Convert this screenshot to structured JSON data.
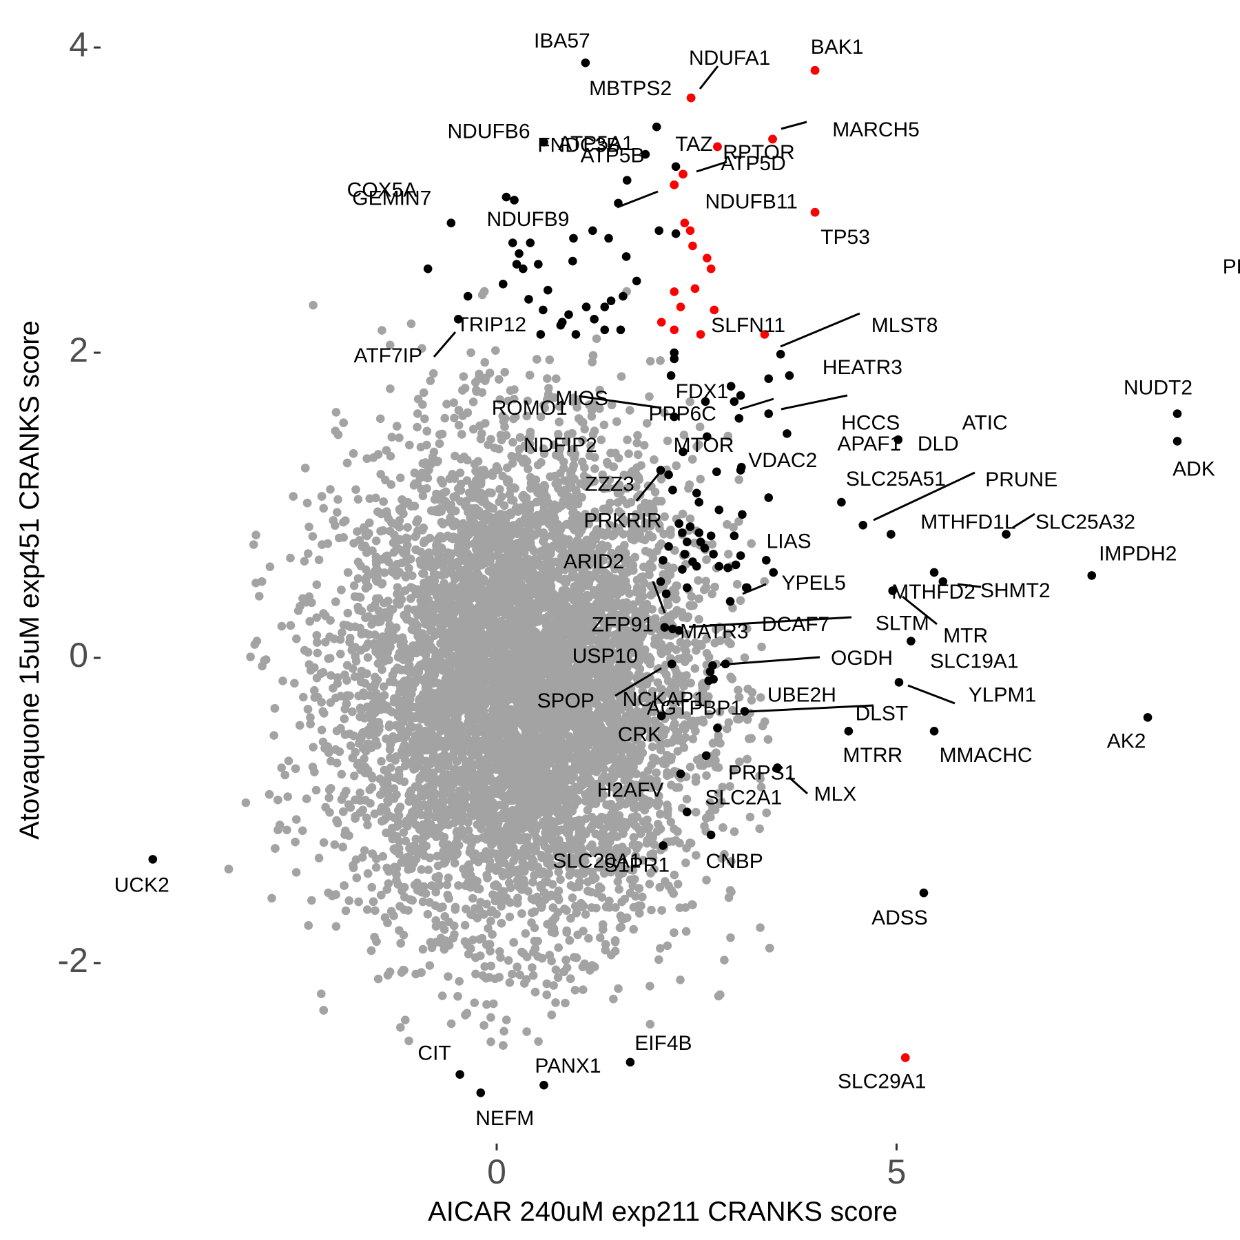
{
  "chart_data": {
    "type": "scatter",
    "title": "",
    "xlabel": "AICAR 240uM exp211 CRANKS score",
    "ylabel": "Atovaquone 15uM exp451 CRANKS score",
    "xlim": [
      -4.5,
      9.2
    ],
    "ylim": [
      -3.2,
      4.3
    ],
    "x_ticks": [
      {
        "value": 0,
        "label": "0"
      },
      {
        "value": 5,
        "label": "5"
      }
    ],
    "y_ticks": [
      {
        "value": 4,
        "label": "4"
      },
      {
        "value": 2,
        "label": "2"
      },
      {
        "value": 0,
        "label": "0"
      },
      {
        "value": -2,
        "label": "-2"
      }
    ],
    "grid": false,
    "legend": "none",
    "colors": {
      "background_points": "#a3a3a3",
      "highlight_black": "#000000",
      "highlight_red": "#ff0000",
      "tick_text": "#4d4d4d"
    },
    "background_cloud": {
      "description": "dense grey cloud of non-significant genes",
      "center": [
        0.3,
        -0.2
      ],
      "spread": [
        1.1,
        0.75
      ],
      "n_points": 9000
    },
    "series": [
      {
        "group": "red",
        "points": [
          {
            "x": 3.98,
            "y": 3.85
          },
          {
            "x": 2.43,
            "y": 3.67
          },
          {
            "x": 3.45,
            "y": 3.4
          },
          {
            "x": 2.76,
            "y": 3.35
          },
          {
            "x": 2.33,
            "y": 3.17
          },
          {
            "x": 2.22,
            "y": 3.1
          },
          {
            "x": 3.98,
            "y": 2.92
          },
          {
            "x": 2.35,
            "y": 2.85
          },
          {
            "x": 2.42,
            "y": 2.8
          },
          {
            "x": 2.45,
            "y": 2.7
          },
          {
            "x": 2.63,
            "y": 2.62
          },
          {
            "x": 2.68,
            "y": 2.55
          },
          {
            "x": 2.22,
            "y": 2.4
          },
          {
            "x": 2.48,
            "y": 2.42
          },
          {
            "x": 2.3,
            "y": 2.3
          },
          {
            "x": 2.72,
            "y": 2.28
          },
          {
            "x": 2.06,
            "y": 2.2
          },
          {
            "x": 2.22,
            "y": 2.15
          },
          {
            "x": 2.55,
            "y": 2.12
          },
          {
            "x": 3.35,
            "y": 2.12
          },
          {
            "x": 5.11,
            "y": -2.62
          }
        ]
      },
      {
        "group": "black_labeled",
        "points": [
          {
            "x": 1.11,
            "y": 3.9,
            "label": "IBA57"
          },
          {
            "x": 2.43,
            "y": 3.67,
            "label": "NDUFA1"
          },
          {
            "x": 3.98,
            "y": 3.85,
            "label": "BAK1"
          },
          {
            "x": 2.43,
            "y": 3.67,
            "label": "MBTPS2"
          },
          {
            "x": 2.76,
            "y": 3.35,
            "label": "RPTOR"
          },
          {
            "x": 3.45,
            "y": 3.4,
            "label": "MARCH5"
          },
          {
            "x": 0.59,
            "y": 3.38,
            "label": "NDUFB6"
          },
          {
            "x": 1.86,
            "y": 3.3,
            "label": "ATP5A1"
          },
          {
            "x": 2.76,
            "y": 3.35,
            "label": "TAZ"
          },
          {
            "x": 2.33,
            "y": 3.17,
            "label": "ATP5D"
          },
          {
            "x": 2.24,
            "y": 3.22,
            "label": "ATP5B"
          },
          {
            "x": 1.63,
            "y": 3.13,
            "label": "FNDC3B"
          },
          {
            "x": 0.22,
            "y": 3.0,
            "label": "COX5A"
          },
          {
            "x": 1.52,
            "y": 2.98,
            "label": "NDUFB9"
          },
          {
            "x": 2.22,
            "y": 3.1,
            "label": "NDUFB11"
          },
          {
            "x": 3.98,
            "y": 2.92,
            "label": "TP53"
          },
          {
            "x": -0.57,
            "y": 2.85,
            "label": "GEMIN7"
          },
          {
            "x": -0.86,
            "y": 2.55,
            "label": "PLAA"
          },
          {
            "x": 3.55,
            "y": 1.99,
            "label": "SLFN11"
          },
          {
            "x": 3.55,
            "y": 1.99,
            "label": "MLST8"
          },
          {
            "x": 3.66,
            "y": 1.85,
            "label": "HEATR3"
          },
          {
            "x": -0.48,
            "y": 2.22,
            "label": "ATF7IP"
          },
          {
            "x": -0.48,
            "y": 2.22,
            "label": "TRIP12"
          },
          {
            "x": 2.61,
            "y": 1.68,
            "label": "FDX1"
          },
          {
            "x": 2.22,
            "y": 1.58,
            "label": "MIOS"
          },
          {
            "x": 2.22,
            "y": 1.58,
            "label": "ROMO1"
          },
          {
            "x": 3.4,
            "y": 1.6,
            "label": "HCCS"
          },
          {
            "x": 3.4,
            "y": 1.6,
            "label": "ATIC"
          },
          {
            "x": 8.51,
            "y": 1.6,
            "label": "NUDT2"
          },
          {
            "x": 8.51,
            "y": 1.42,
            "label": "ADK"
          },
          {
            "x": 5.02,
            "y": 1.43,
            "label": "APAF1"
          },
          {
            "x": 5.02,
            "y": 1.43,
            "label": "DLD"
          },
          {
            "x": 2.33,
            "y": 1.35,
            "label": "NDFIP2"
          },
          {
            "x": 2.33,
            "y": 1.35,
            "label": "MTOR"
          },
          {
            "x": 3.06,
            "y": 1.25,
            "label": "VDAC2"
          },
          {
            "x": 2.05,
            "y": 1.23,
            "label": "ZZZ3"
          },
          {
            "x": 4.31,
            "y": 1.02,
            "label": "SLC25A51"
          },
          {
            "x": 4.58,
            "y": 0.87,
            "label": "PRUNE"
          },
          {
            "x": 4.93,
            "y": 0.81,
            "label": "MTHFD1L"
          },
          {
            "x": 6.37,
            "y": 0.81,
            "label": "SLC25A32"
          },
          {
            "x": 3.4,
            "y": 1.05,
            "label": "PPP6C"
          },
          {
            "x": 2.05,
            "y": 1.23,
            "label": "PRKRIR"
          },
          {
            "x": 3.05,
            "y": 0.67,
            "label": "LIAS"
          },
          {
            "x": 5.47,
            "y": 0.56,
            "label": "MTHFD2"
          },
          {
            "x": 7.44,
            "y": 0.54,
            "label": "IMPDH2"
          },
          {
            "x": 5.58,
            "y": 0.5,
            "label": "SHMT2"
          },
          {
            "x": 2.05,
            "y": 0.5,
            "label": "ARID2"
          },
          {
            "x": 3.12,
            "y": 0.46,
            "label": "YPEL5"
          },
          {
            "x": 4.95,
            "y": 0.44,
            "label": "MTR"
          },
          {
            "x": 2.1,
            "y": 0.2,
            "label": "ZFP91"
          },
          {
            "x": 2.1,
            "y": 0.2,
            "label": "MATR3"
          },
          {
            "x": 2.1,
            "y": 0.2,
            "label": "SLTM"
          },
          {
            "x": 2.86,
            "y": -0.04,
            "label": "DCAF7"
          },
          {
            "x": 2.86,
            "y": -0.04,
            "label": "OGDH"
          },
          {
            "x": 5.18,
            "y": 0.11,
            "label": "SLC19A1"
          },
          {
            "x": 2.19,
            "y": -0.04,
            "label": "USP10"
          },
          {
            "x": 2.19,
            "y": -0.04,
            "label": "SPOP"
          },
          {
            "x": 5.03,
            "y": -0.16,
            "label": "YLPM1"
          },
          {
            "x": 2.71,
            "y": -0.14,
            "label": "NCKAP1"
          },
          {
            "x": 3.1,
            "y": -0.35,
            "label": "AGTPBP1"
          },
          {
            "x": 3.1,
            "y": -0.35,
            "label": "UBE2H"
          },
          {
            "x": 3.1,
            "y": -0.35,
            "label": "DLST"
          },
          {
            "x": 8.14,
            "y": -0.39,
            "label": "AK2"
          },
          {
            "x": 4.4,
            "y": -0.48,
            "label": "MTRR"
          },
          {
            "x": 5.47,
            "y": -0.48,
            "label": "MMACHC"
          },
          {
            "x": 2.76,
            "y": -0.46,
            "label": "CRK"
          },
          {
            "x": 2.62,
            "y": -0.64,
            "label": "PRPS1"
          },
          {
            "x": 3.51,
            "y": -0.72,
            "label": "MLX"
          },
          {
            "x": 2.3,
            "y": -0.76,
            "label": "H2AFV"
          },
          {
            "x": 2.38,
            "y": -1.01,
            "label": "SLC2A1"
          },
          {
            "x": 2.08,
            "y": -1.23,
            "label": "SLC20A1"
          },
          {
            "x": 2.68,
            "y": -1.16,
            "label": "CNBP"
          },
          {
            "x": 2.08,
            "y": -1.23,
            "label": "S1PR1"
          },
          {
            "x": -4.3,
            "y": -1.32,
            "label": "UCK2"
          },
          {
            "x": 5.34,
            "y": -1.54,
            "label": "ADSS"
          },
          {
            "x": -0.46,
            "y": -2.73,
            "label": "CIT"
          },
          {
            "x": 1.67,
            "y": -2.65,
            "label": "EIF4B"
          },
          {
            "x": 0.59,
            "y": -2.8,
            "label": "PANX1"
          },
          {
            "x": -0.2,
            "y": -2.85,
            "label": "NEFM"
          },
          {
            "x": 5.11,
            "y": -2.62,
            "label": "SLC29A1"
          }
        ]
      },
      {
        "group": "black_unlabeled",
        "points": [
          {
            "x": 2.0,
            "y": 3.48
          },
          {
            "x": 0.12,
            "y": 3.02
          },
          {
            "x": 0.2,
            "y": 2.72
          },
          {
            "x": 0.25,
            "y": 2.58
          },
          {
            "x": 0.28,
            "y": 2.65
          },
          {
            "x": 0.33,
            "y": 2.55
          },
          {
            "x": 0.42,
            "y": 2.72
          },
          {
            "x": 0.52,
            "y": 2.58
          },
          {
            "x": 0.08,
            "y": 2.45
          },
          {
            "x": 0.64,
            "y": 2.41
          },
          {
            "x": 0.95,
            "y": 2.6
          },
          {
            "x": 0.96,
            "y": 2.75
          },
          {
            "x": 1.2,
            "y": 2.8
          },
          {
            "x": 1.4,
            "y": 2.75
          },
          {
            "x": 1.62,
            "y": 2.63
          },
          {
            "x": 2.03,
            "y": 2.8
          },
          {
            "x": 2.24,
            "y": 2.78
          },
          {
            "x": 1.75,
            "y": 2.47
          },
          {
            "x": 1.58,
            "y": 2.37
          },
          {
            "x": 1.43,
            "y": 2.34
          },
          {
            "x": 1.12,
            "y": 2.3
          },
          {
            "x": 0.9,
            "y": 2.25
          },
          {
            "x": 0.8,
            "y": 2.18
          },
          {
            "x": 0.58,
            "y": 2.28
          },
          {
            "x": 0.55,
            "y": 2.12
          },
          {
            "x": 0.82,
            "y": 2.2
          },
          {
            "x": 0.99,
            "y": 2.12
          },
          {
            "x": 1.22,
            "y": 2.22
          },
          {
            "x": 1.35,
            "y": 2.15
          },
          {
            "x": 1.55,
            "y": 2.15
          },
          {
            "x": 1.35,
            "y": 2.3
          },
          {
            "x": 0.4,
            "y": 2.35
          },
          {
            "x": -0.36,
            "y": 2.37
          },
          {
            "x": 2.22,
            "y": 1.96
          },
          {
            "x": 2.22,
            "y": 2.0
          },
          {
            "x": 2.18,
            "y": 1.85
          },
          {
            "x": 2.93,
            "y": 1.78
          },
          {
            "x": 3.4,
            "y": 1.83
          },
          {
            "x": 3.05,
            "y": 1.72
          },
          {
            "x": 3.03,
            "y": 1.57
          },
          {
            "x": 2.97,
            "y": 1.68
          },
          {
            "x": 3.63,
            "y": 1.47
          },
          {
            "x": 2.22,
            "y": 1.58
          },
          {
            "x": 2.33,
            "y": 1.35
          },
          {
            "x": 2.63,
            "y": 1.45
          },
          {
            "x": 2.75,
            "y": 1.22
          },
          {
            "x": 3.05,
            "y": 1.23
          },
          {
            "x": 2.15,
            "y": 1.2
          },
          {
            "x": 2.2,
            "y": 1.1
          },
          {
            "x": 2.5,
            "y": 1.08
          },
          {
            "x": 2.53,
            "y": 1.02
          },
          {
            "x": 2.78,
            "y": 0.97
          },
          {
            "x": 3.07,
            "y": 0.94
          },
          {
            "x": 2.28,
            "y": 0.88
          },
          {
            "x": 2.42,
            "y": 0.86
          },
          {
            "x": 2.53,
            "y": 0.82
          },
          {
            "x": 2.32,
            "y": 0.82
          },
          {
            "x": 2.68,
            "y": 0.8
          },
          {
            "x": 2.97,
            "y": 0.8
          },
          {
            "x": 2.38,
            "y": 0.76
          },
          {
            "x": 2.55,
            "y": 0.76
          },
          {
            "x": 2.15,
            "y": 0.73
          },
          {
            "x": 2.6,
            "y": 0.72
          },
          {
            "x": 2.35,
            "y": 0.68
          },
          {
            "x": 2.45,
            "y": 0.63
          },
          {
            "x": 2.71,
            "y": 0.68
          },
          {
            "x": 3.37,
            "y": 0.64
          },
          {
            "x": 2.08,
            "y": 0.64
          },
          {
            "x": 2.32,
            "y": 0.58
          },
          {
            "x": 2.5,
            "y": 0.6
          },
          {
            "x": 2.78,
            "y": 0.6
          },
          {
            "x": 2.89,
            "y": 0.59
          },
          {
            "x": 2.99,
            "y": 0.61
          },
          {
            "x": 3.46,
            "y": 0.56
          },
          {
            "x": 3.13,
            "y": 0.46
          },
          {
            "x": 2.92,
            "y": 0.37
          },
          {
            "x": 2.12,
            "y": 0.42
          },
          {
            "x": 2.38,
            "y": 0.46
          },
          {
            "x": 2.2,
            "y": 0.19
          },
          {
            "x": 2.28,
            "y": 0.18
          },
          {
            "x": 2.7,
            "y": -0.05
          },
          {
            "x": 2.67,
            "y": -0.09
          },
          {
            "x": 2.65,
            "y": -0.15
          },
          {
            "x": 2.06,
            "y": -0.38
          }
        ]
      }
    ]
  }
}
